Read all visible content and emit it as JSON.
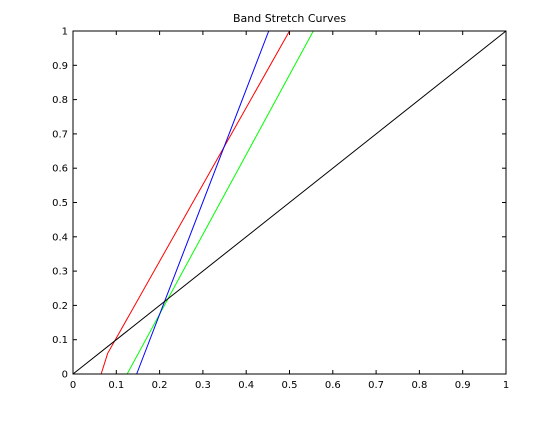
{
  "chart_data": {
    "type": "line",
    "title": "Band Stretch Curves",
    "xlabel": "",
    "ylabel": "",
    "xlim": [
      0,
      1
    ],
    "ylim": [
      0,
      1
    ],
    "x_ticks": [
      "0",
      "0.1",
      "0.2",
      "0.3",
      "0.4",
      "0.5",
      "0.6",
      "0.7",
      "0.8",
      "0.9",
      "1"
    ],
    "y_ticks": [
      "0",
      "0.1",
      "0.2",
      "0.3",
      "0.4",
      "0.5",
      "0.6",
      "0.7",
      "0.8",
      "0.9",
      "1"
    ],
    "grid": false,
    "legend": "none",
    "series": [
      {
        "color": "#ff0000",
        "x": [
          0.065,
          0.08,
          0.5
        ],
        "y": [
          0,
          0.06,
          1
        ]
      },
      {
        "color": "#00ff00",
        "x": [
          0.125,
          0.555
        ],
        "y": [
          0,
          1
        ]
      },
      {
        "color": "#0000ff",
        "x": [
          0.147,
          0.452
        ],
        "y": [
          0,
          1
        ]
      },
      {
        "color": "#000000",
        "x": [
          0,
          1
        ],
        "y": [
          0,
          1
        ]
      }
    ]
  }
}
